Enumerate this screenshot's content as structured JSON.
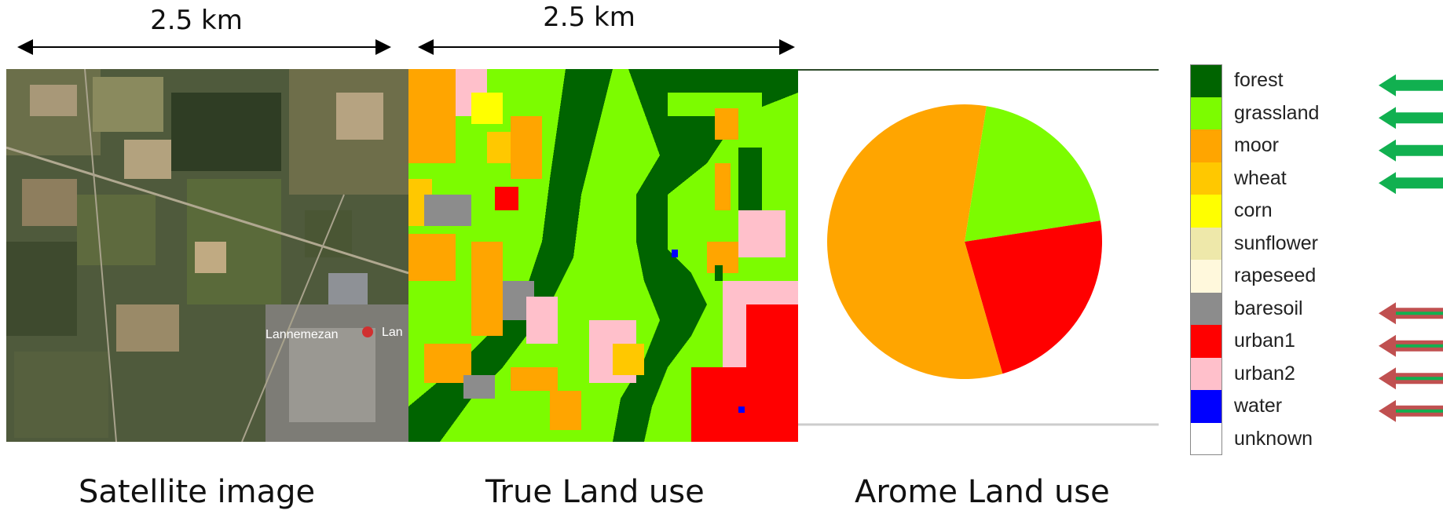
{
  "scale_labels": {
    "left": "2.5 km",
    "middle": "2.5 km"
  },
  "captions": {
    "satellite": "Satellite image",
    "true_land_use": "True Land use",
    "arome_land_use": "Arome Land use"
  },
  "map_marker_text": {
    "town": "Lannemezan",
    "town_clipped": "Lan"
  },
  "legend": [
    {
      "label": "forest",
      "color": "#006400",
      "arrow": "green"
    },
    {
      "label": "grassland",
      "color": "#7CFC00",
      "arrow": "green"
    },
    {
      "label": "moor",
      "color": "#FFA500",
      "arrow": "green"
    },
    {
      "label": "wheat",
      "color": "#FFC800",
      "arrow": "green"
    },
    {
      "label": "corn",
      "color": "#FFFF00",
      "arrow": null
    },
    {
      "label": "sunflower",
      "color": "#EEE8AA",
      "arrow": null
    },
    {
      "label": "rapeseed",
      "color": "#FFF8DC",
      "arrow": null
    },
    {
      "label": "baresoil",
      "color": "#8C8C8C",
      "arrow": "red"
    },
    {
      "label": "urban1",
      "color": "#FF0000",
      "arrow": "red"
    },
    {
      "label": "urban2",
      "color": "#FFC0CB",
      "arrow": "red"
    },
    {
      "label": "water",
      "color": "#0000FF",
      "arrow": "red"
    },
    {
      "label": "unknown",
      "color": "#FFFFFF",
      "arrow": null
    }
  ],
  "arrow_colors": {
    "green": "#11B050",
    "red": "#C05050"
  },
  "arome_pie": [
    {
      "category": "moor",
      "fraction": 0.57
    },
    {
      "category": "grassland",
      "fraction": 0.2
    },
    {
      "category": "urban1",
      "fraction": 0.23
    }
  ]
}
